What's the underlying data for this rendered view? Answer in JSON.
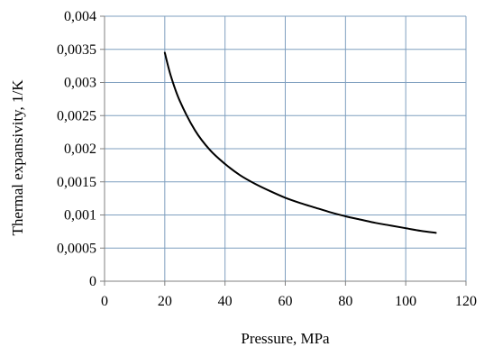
{
  "chart_data": {
    "type": "line",
    "title": "",
    "xlabel": "Pressure, MPa",
    "ylabel": "Thermal expansivity, 1/K",
    "xlim": [
      0,
      120
    ],
    "ylim": [
      0,
      0.004
    ],
    "x_ticks": [
      0,
      20,
      40,
      60,
      80,
      100,
      120
    ],
    "x_tick_labels": [
      "0",
      "20",
      "40",
      "60",
      "80",
      "100",
      "120"
    ],
    "y_ticks": [
      0,
      0.0005,
      0.001,
      0.0015,
      0.002,
      0.0025,
      0.003,
      0.0035,
      0.004
    ],
    "y_tick_labels": [
      "0",
      "0,0005",
      "0,001",
      "0,0015",
      "0,002",
      "0,0025",
      "0,003",
      "0,0035",
      "0,004"
    ],
    "grid": true,
    "legend": "none",
    "colors": {
      "line": "#000000",
      "grid": "#7f9fbf",
      "axis": "#808080"
    },
    "series": [
      {
        "x": [
          20,
          22,
          25,
          30,
          35,
          40,
          45,
          50,
          55,
          60,
          65,
          70,
          75,
          80,
          85,
          90,
          95,
          100,
          105,
          110
        ],
        "y": [
          0.00345,
          0.0031,
          0.00272,
          0.00228,
          0.00198,
          0.00177,
          0.0016,
          0.00147,
          0.00136,
          0.00126,
          0.00118,
          0.00111,
          0.00104,
          0.00098,
          0.00093,
          0.00088,
          0.00084,
          0.0008,
          0.00076,
          0.00073
        ]
      }
    ]
  }
}
